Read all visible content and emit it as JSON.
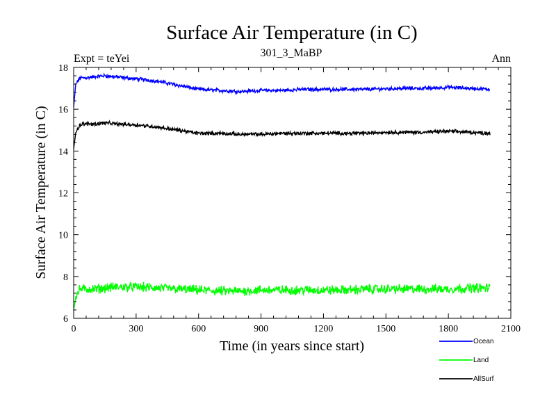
{
  "chart_data": {
    "type": "line",
    "title": "Surface Air Temperature (in C)",
    "subtitle_left": "Expt = teYei",
    "subtitle_center": "301_3_MaBP",
    "subtitle_right": "Ann",
    "xlabel": "Time (in years since start)",
    "ylabel": "Surface Air Temperature (in C)",
    "xlim": [
      0,
      2100
    ],
    "ylim": [
      6,
      18
    ],
    "x_ticks": [
      0,
      300,
      600,
      900,
      1200,
      1500,
      1800,
      2100
    ],
    "y_ticks": [
      6,
      8,
      10,
      12,
      14,
      16,
      18
    ],
    "x_minor_step": 60,
    "y_minor_step": 0.4,
    "grid": false,
    "legend_position": "bottom-right, below plot",
    "series": [
      {
        "name": "Ocean",
        "color": "#0000ff",
        "noise": 0.07,
        "x": [
          0,
          10,
          30,
          60,
          100,
          150,
          200,
          300,
          400,
          500,
          600,
          700,
          800,
          900,
          1000,
          1100,
          1200,
          1300,
          1400,
          1500,
          1600,
          1700,
          1800,
          1900,
          2000
        ],
        "y": [
          16.1,
          17.2,
          17.5,
          17.5,
          17.55,
          17.6,
          17.55,
          17.45,
          17.35,
          17.15,
          16.95,
          16.9,
          16.85,
          16.9,
          16.9,
          16.95,
          16.95,
          16.95,
          16.95,
          16.98,
          17.0,
          17.0,
          17.05,
          17.0,
          16.95
        ]
      },
      {
        "name": "Land",
        "color": "#00ff00",
        "noise": 0.18,
        "x": [
          0,
          10,
          30,
          100,
          200,
          300,
          400,
          500,
          600,
          700,
          800,
          900,
          1000,
          1100,
          1200,
          1300,
          1400,
          1500,
          1600,
          1700,
          1800,
          1900,
          2000
        ],
        "y": [
          6.4,
          7.0,
          7.4,
          7.4,
          7.5,
          7.5,
          7.45,
          7.4,
          7.35,
          7.3,
          7.3,
          7.35,
          7.35,
          7.35,
          7.35,
          7.35,
          7.4,
          7.4,
          7.4,
          7.4,
          7.4,
          7.45,
          7.45
        ]
      },
      {
        "name": "AllSurf",
        "color": "#000000",
        "noise": 0.07,
        "x": [
          0,
          10,
          30,
          60,
          100,
          150,
          200,
          300,
          400,
          500,
          600,
          700,
          800,
          900,
          1000,
          1100,
          1200,
          1300,
          1400,
          1500,
          1600,
          1700,
          1800,
          1900,
          2000
        ],
        "y": [
          14.1,
          14.9,
          15.25,
          15.3,
          15.3,
          15.35,
          15.3,
          15.25,
          15.15,
          15.0,
          14.85,
          14.85,
          14.8,
          14.8,
          14.85,
          14.85,
          14.85,
          14.85,
          14.85,
          14.9,
          14.9,
          14.9,
          14.95,
          14.9,
          14.85
        ]
      }
    ]
  }
}
